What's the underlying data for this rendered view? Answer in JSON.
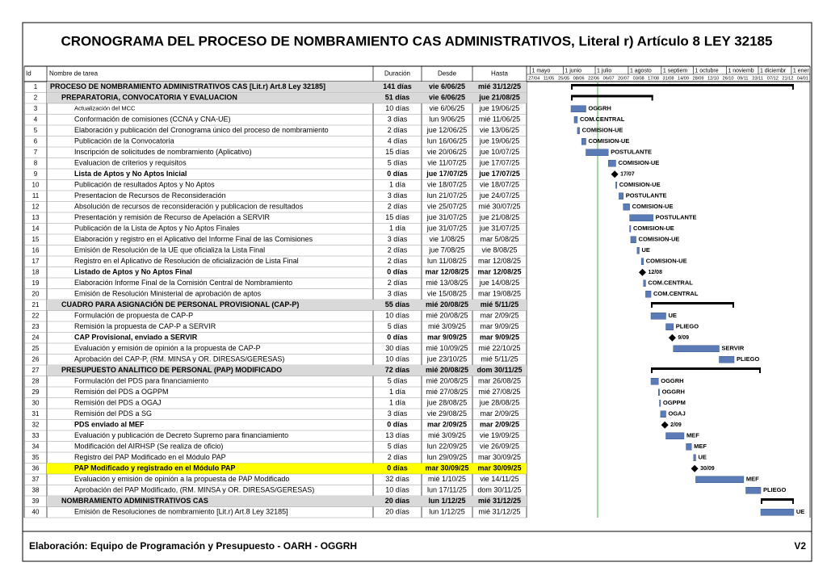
{
  "title": "CRONOGRAMA DEL PROCESO DE NOMBRAMIENTO CAS ADMINISTRATIVOS, Literal r) Artículo 8 LEY 32185",
  "header": {
    "id": "Id",
    "name": "Nombre de tarea",
    "duration": "Duración",
    "start": "Desde",
    "end": "Hasta"
  },
  "timeline": {
    "months": [
      "1 mayo",
      "1 junio",
      "1 julio",
      "1 agosto",
      "1 septiem",
      "1 octubre",
      "1 noviemb",
      "1 diciembr",
      "1 ener"
    ],
    "weeks": [
      "27/04",
      "11/05",
      "25/05",
      "08/06",
      "22/06",
      "06/07",
      "20/07",
      "03/08",
      "17/08",
      "31/08",
      "14/09",
      "28/09",
      "12/10",
      "26/10",
      "09/11",
      "23/11",
      "07/12",
      "21/12",
      "04/01"
    ]
  },
  "rows": [
    {
      "id": 1,
      "name": "PROCESO DE NOMBRAMIENTO ADMINISTRATIVOS CAS [Lit.r) Art.8 Ley 32185]",
      "duration": "141 días",
      "start": "vie 6/06/25",
      "end": "mié 31/12/25",
      "type": "summary",
      "level": 1
    },
    {
      "id": 2,
      "name": "PREPARATORIA, CONVOCATORIA Y EVALUACION",
      "duration": "51 días",
      "start": "vie 6/06/25",
      "end": "jue 21/08/25",
      "type": "summary",
      "level": 2
    },
    {
      "id": 3,
      "name": "Actualización del MCC",
      "duration": "10 días",
      "start": "vie 6/06/25",
      "end": "jue 19/06/25",
      "label": "OGGRH",
      "type": "task",
      "level": 3
    },
    {
      "id": 4,
      "name": "Conformación de comisiones (CCNA y CNA-UE)",
      "duration": "3 días",
      "start": "lun 9/06/25",
      "end": "mié 11/06/25",
      "label": "COM.CENTRAL",
      "type": "task",
      "level": 3
    },
    {
      "id": 5,
      "name": "Elaboración y publicación del Cronograma único del proceso de nombramiento",
      "duration": "2 días",
      "start": "jue 12/06/25",
      "end": "vie 13/06/25",
      "label": "COMISION-UE",
      "type": "task",
      "level": 3
    },
    {
      "id": 6,
      "name": "Publicación de la Convocatoria",
      "duration": "4 días",
      "start": "lun 16/06/25",
      "end": "jue 19/06/25",
      "label": "COMISION-UE",
      "type": "task",
      "level": 3
    },
    {
      "id": 7,
      "name": "Inscripción de solicitudes de nombramiento (Aplicativo)",
      "duration": "15 días",
      "start": "vie 20/06/25",
      "end": "jue 10/07/25",
      "label": "POSTULANTE",
      "type": "task",
      "level": 3
    },
    {
      "id": 8,
      "name": "Evaluacion de criterios y requisitos",
      "duration": "5 días",
      "start": "vie 11/07/25",
      "end": "jue 17/07/25",
      "label": "COMISION-UE",
      "type": "task",
      "level": 3
    },
    {
      "id": 9,
      "name": "Lista de Aptos y No Aptos Inicial",
      "duration": "0 días",
      "start": "jue 17/07/25",
      "end": "jue 17/07/25",
      "label": "17/07",
      "type": "milestone",
      "level": 3
    },
    {
      "id": 10,
      "name": "Publicación de resultados Aptos y No Aptos",
      "duration": "1 día",
      "start": "vie 18/07/25",
      "end": "vie 18/07/25",
      "label": "COMISION-UE",
      "type": "task",
      "level": 3
    },
    {
      "id": 11,
      "name": "Presentacion de Recursos de Reconsideración",
      "duration": "3 días",
      "start": "lun 21/07/25",
      "end": "jue 24/07/25",
      "label": "POSTULANTE",
      "type": "task",
      "level": 3
    },
    {
      "id": 12,
      "name": "Absolución de recursos de reconsideración y publicacion de resultados",
      "duration": "2 días",
      "start": "vie 25/07/25",
      "end": "mié 30/07/25",
      "label": "COMISION-UE",
      "type": "task",
      "level": 3
    },
    {
      "id": 13,
      "name": "Presentación y remisión de Recurso de Apelación a SERVIR",
      "duration": "15 días",
      "start": "jue 31/07/25",
      "end": "jue 21/08/25",
      "label": "POSTULANTE",
      "type": "task",
      "level": 3
    },
    {
      "id": 14,
      "name": "Publicación de la Lista de Aptos y No Aptos Finales",
      "duration": "1 día",
      "start": "jue 31/07/25",
      "end": "jue 31/07/25",
      "label": "COMISION-UE",
      "type": "task",
      "level": 3
    },
    {
      "id": 15,
      "name": "Elaboración y registro en el Aplicativo del Informe Final de las Comisiones",
      "duration": "3 días",
      "start": "vie 1/08/25",
      "end": "mar 5/08/25",
      "label": "COMISION-UE",
      "type": "task",
      "level": 3
    },
    {
      "id": 16,
      "name": "Emisión de Resolución de la UE que oficializa la Lista Final",
      "duration": "2 días",
      "start": "jue 7/08/25",
      "end": "vie 8/08/25",
      "label": "UE",
      "type": "task",
      "level": 3
    },
    {
      "id": 17,
      "name": "Registro en el Aplicativo de Resolución de oficialización de Lista Final",
      "duration": "2 días",
      "start": "lun 11/08/25",
      "end": "mar 12/08/25",
      "label": "COMISION-UE",
      "type": "task",
      "level": 3
    },
    {
      "id": 18,
      "name": "Listado de Aptos y No Aptos Final",
      "duration": "0 días",
      "start": "mar 12/08/25",
      "end": "mar 12/08/25",
      "label": "12/08",
      "type": "milestone",
      "level": 3
    },
    {
      "id": 19,
      "name": "Elaboración Informe Final de la Comisión Central de Nombramiento",
      "duration": "2 días",
      "start": "mié 13/08/25",
      "end": "jue 14/08/25",
      "label": "COM.CENTRAL",
      "type": "task",
      "level": 3
    },
    {
      "id": 20,
      "name": "Emisión de Resolución Ministerial de aprobación de aptos",
      "duration": "3 días",
      "start": "vie 15/08/25",
      "end": "mar 19/08/25",
      "label": "COM.CENTRAL",
      "type": "task",
      "level": 3
    },
    {
      "id": 21,
      "name": "CUADRO PARA ASIGNACIÓN DE PERSONAL PROVISIONAL (CAP-P)",
      "duration": "55 días",
      "start": "mié 20/08/25",
      "end": "mié 5/11/25",
      "type": "summary",
      "level": 2
    },
    {
      "id": 22,
      "name": "Formulación de propuesta de CAP-P",
      "duration": "10 días",
      "start": "mié 20/08/25",
      "end": "mar 2/09/25",
      "label": "UE",
      "type": "task",
      "level": 3
    },
    {
      "id": 23,
      "name": "Remisión la propuesta de CAP-P a SERVIR",
      "duration": "5 días",
      "start": "mié 3/09/25",
      "end": "mar 9/09/25",
      "label": "PLIEGO",
      "type": "task",
      "level": 3
    },
    {
      "id": 24,
      "name": "CAP Provisional, enviado a SERVIR",
      "duration": "0 días",
      "start": "mar 9/09/25",
      "end": "mar 9/09/25",
      "label": "9/09",
      "type": "milestone",
      "level": 3
    },
    {
      "id": 25,
      "name": "Evaluación y emisión de opinión a la propuesta de CAP-P",
      "duration": "30 días",
      "start": "mié 10/09/25",
      "end": "mié 22/10/25",
      "label": "SERVIR",
      "type": "task",
      "level": 3
    },
    {
      "id": 26,
      "name": "Aprobación del CAP-P, (RM. MINSA y OR. DIRESAS/GERESAS)",
      "duration": "10 días",
      "start": "jue 23/10/25",
      "end": "mié 5/11/25",
      "label": "PLIEGO",
      "type": "task",
      "level": 3
    },
    {
      "id": 27,
      "name": "PRESUPUESTO ANALITICO DE PERSONAL (PAP) MODIFICADO",
      "duration": "72 días",
      "start": "mié 20/08/25",
      "end": "dom 30/11/25",
      "type": "summary",
      "level": 2
    },
    {
      "id": 28,
      "name": "Formulación del PDS para financiamiento",
      "duration": "5 días",
      "start": "mié 20/08/25",
      "end": "mar 26/08/25",
      "label": "OGGRH",
      "type": "task",
      "level": 3
    },
    {
      "id": 29,
      "name": "Remisión del PDS a OGPPM",
      "duration": "1 día",
      "start": "mié 27/08/25",
      "end": "mié 27/08/25",
      "label": "OGGRH",
      "type": "task",
      "level": 3
    },
    {
      "id": 30,
      "name": "Remisión del PDS a OGAJ",
      "duration": "1 día",
      "start": "jue 28/08/25",
      "end": "jue 28/08/25",
      "label": "OGPPM",
      "type": "task",
      "level": 3
    },
    {
      "id": 31,
      "name": "Remisión del PDS a SG",
      "duration": "3 días",
      "start": "vie 29/08/25",
      "end": "mar 2/09/25",
      "label": "OGAJ",
      "type": "task",
      "level": 3
    },
    {
      "id": 32,
      "name": "PDS enviado al MEF",
      "duration": "0 días",
      "start": "mar 2/09/25",
      "end": "mar 2/09/25",
      "label": "2/09",
      "type": "milestone",
      "level": 3
    },
    {
      "id": 33,
      "name": "Evaluación y publicación de Decreto Supremo para financiamiento",
      "duration": "13 días",
      "start": "mié 3/09/25",
      "end": "vie 19/09/25",
      "label": "MEF",
      "type": "task",
      "level": 3
    },
    {
      "id": 34,
      "name": "Modificación del AIRHSP (Se realiza de oficio)",
      "duration": "5 días",
      "start": "lun 22/09/25",
      "end": "vie 26/09/25",
      "label": "MEF",
      "type": "task",
      "level": 3
    },
    {
      "id": 35,
      "name": "Registro del PAP Modificado en el Módulo PAP",
      "duration": "2 días",
      "start": "lun 29/09/25",
      "end": "mar 30/09/25",
      "label": "UE",
      "type": "task",
      "level": 3
    },
    {
      "id": 36,
      "name": "PAP Modificado y registrado en el Módulo PAP",
      "duration": "0 días",
      "start": "mar 30/09/25",
      "end": "mar 30/09/25",
      "label": "30/09",
      "type": "milestone",
      "level": 3,
      "highlight": "#ffff00"
    },
    {
      "id": 37,
      "name": "Evaluación y emisión de opinión a la propuesta de PAP Modificado",
      "duration": "32 días",
      "start": "mié 1/10/25",
      "end": "vie 14/11/25",
      "label": "MEF",
      "type": "task",
      "level": 3
    },
    {
      "id": 38,
      "name": "Aprobación del PAP Modificado, (RM. MINSA y OR. DIRESAS/GERESAS)",
      "duration": "10 días",
      "start": "lun 17/11/25",
      "end": "dom 30/11/25",
      "label": "PLIEGO",
      "type": "task",
      "level": 3
    },
    {
      "id": 39,
      "name": "NOMBRAMIENTO ADMINISTRATIVOS CAS",
      "duration": "20 días",
      "start": "lun 1/12/25",
      "end": "mié 31/12/25",
      "type": "summary",
      "level": 2
    },
    {
      "id": 40,
      "name": "Emisión de Resoluciones de nombramiento [Lit.r) Art.8 Ley 32185]",
      "duration": "20 días",
      "start": "lun 1/12/25",
      "end": "mié 31/12/25",
      "label": "UE",
      "type": "task",
      "level": 3
    }
  ],
  "footer": {
    "text": "Elaboración: Equipo de Programación y Presupuesto - OARH - OGGRH",
    "version": "V2"
  }
}
